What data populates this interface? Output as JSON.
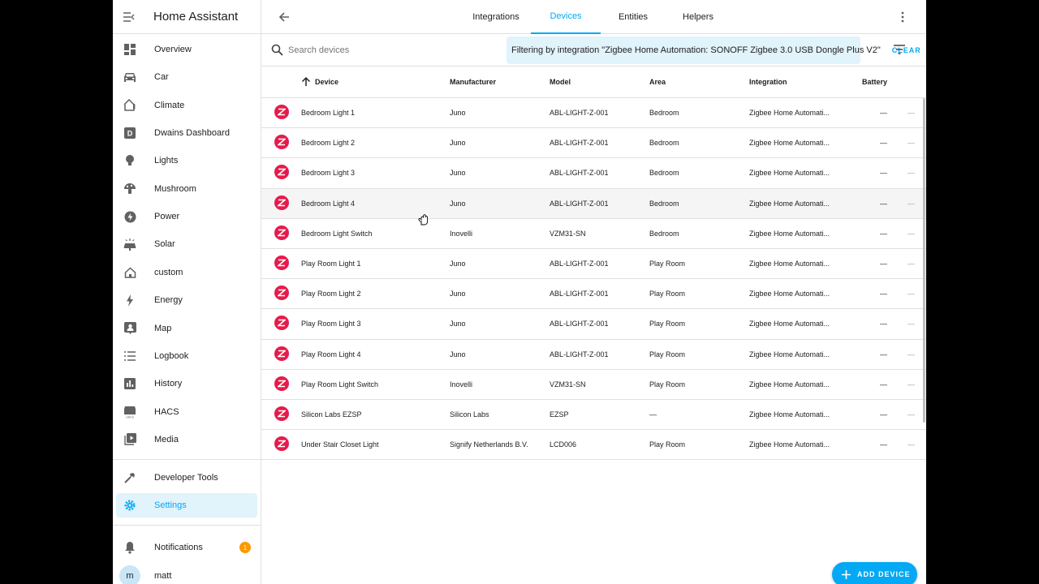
{
  "app": {
    "title": "Home Assistant"
  },
  "sidebar": {
    "items": [
      {
        "label": "Overview",
        "icon": "dashboard-icon"
      },
      {
        "label": "Car",
        "icon": "car-icon"
      },
      {
        "label": "Climate",
        "icon": "home-thermometer-icon"
      },
      {
        "label": "Dwains Dashboard",
        "icon": "dwains-icon"
      },
      {
        "label": "Lights",
        "icon": "lightbulb-icon"
      },
      {
        "label": "Mushroom",
        "icon": "mushroom-icon"
      },
      {
        "label": "Power",
        "icon": "lightning-circle-icon"
      },
      {
        "label": "Solar",
        "icon": "solar-panel-icon"
      },
      {
        "label": "custom",
        "icon": "home-outline-icon"
      },
      {
        "label": "Energy",
        "icon": "lightning-icon"
      },
      {
        "label": "Map",
        "icon": "map-account-icon"
      },
      {
        "label": "Logbook",
        "icon": "list-icon"
      },
      {
        "label": "History",
        "icon": "chart-box-icon"
      },
      {
        "label": "HACS",
        "icon": "hacs-icon"
      },
      {
        "label": "Media",
        "icon": "play-box-icon"
      }
    ],
    "developer_tools": "Developer Tools",
    "settings": "Settings",
    "notifications": "Notifications",
    "notifications_count": "1",
    "user": "matt",
    "user_initial": "m"
  },
  "tabs": [
    "Integrations",
    "Devices",
    "Entities",
    "Helpers"
  ],
  "active_tab": "Devices",
  "search": {
    "placeholder": "Search devices",
    "value": ""
  },
  "filter": {
    "text": "Filtering by integration \"Zigbee Home Automation: SONOFF Zigbee 3.0 USB Dongle Plus V2\"",
    "clear": "CLEAR"
  },
  "table": {
    "headers": {
      "device": "Device",
      "manufacturer": "Manufacturer",
      "model": "Model",
      "area": "Area",
      "integration": "Integration",
      "battery": "Battery"
    },
    "rows": [
      {
        "device": "Bedroom Light 1",
        "manufacturer": "Juno",
        "model": "ABL-LIGHT-Z-001",
        "area": "Bedroom",
        "integration": "Zigbee Home Automati...",
        "battery": "—",
        "extra": "—"
      },
      {
        "device": "Bedroom Light 2",
        "manufacturer": "Juno",
        "model": "ABL-LIGHT-Z-001",
        "area": "Bedroom",
        "integration": "Zigbee Home Automati...",
        "battery": "—",
        "extra": "—"
      },
      {
        "device": "Bedroom Light 3",
        "manufacturer": "Juno",
        "model": "ABL-LIGHT-Z-001",
        "area": "Bedroom",
        "integration": "Zigbee Home Automati...",
        "battery": "—",
        "extra": "—"
      },
      {
        "device": "Bedroom Light 4",
        "manufacturer": "Juno",
        "model": "ABL-LIGHT-Z-001",
        "area": "Bedroom",
        "integration": "Zigbee Home Automati...",
        "battery": "—",
        "extra": "—"
      },
      {
        "device": "Bedroom Light Switch",
        "manufacturer": "Inovelli",
        "model": "VZM31-SN",
        "area": "Bedroom",
        "integration": "Zigbee Home Automati...",
        "battery": "—",
        "extra": "—"
      },
      {
        "device": "Play Room Light 1",
        "manufacturer": "Juno",
        "model": "ABL-LIGHT-Z-001",
        "area": "Play Room",
        "integration": "Zigbee Home Automati...",
        "battery": "—",
        "extra": "—"
      },
      {
        "device": "Play Room Light 2",
        "manufacturer": "Juno",
        "model": "ABL-LIGHT-Z-001",
        "area": "Play Room",
        "integration": "Zigbee Home Automati...",
        "battery": "—",
        "extra": "—"
      },
      {
        "device": "Play Room Light 3",
        "manufacturer": "Juno",
        "model": "ABL-LIGHT-Z-001",
        "area": "Play Room",
        "integration": "Zigbee Home Automati...",
        "battery": "—",
        "extra": "—"
      },
      {
        "device": "Play Room Light 4",
        "manufacturer": "Juno",
        "model": "ABL-LIGHT-Z-001",
        "area": "Play Room",
        "integration": "Zigbee Home Automati...",
        "battery": "—",
        "extra": "—"
      },
      {
        "device": "Play Room Light Switch",
        "manufacturer": "Inovelli",
        "model": "VZM31-SN",
        "area": "Play Room",
        "integration": "Zigbee Home Automati...",
        "battery": "—",
        "extra": "—"
      },
      {
        "device": "Silicon Labs EZSP",
        "manufacturer": "Silicon Labs",
        "model": "EZSP",
        "area": "—",
        "integration": "Zigbee Home Automati...",
        "battery": "—",
        "extra": "—"
      },
      {
        "device": "Under Stair Closet Light",
        "manufacturer": "Signify Netherlands B.V.",
        "model": "LCD006",
        "area": "Play Room",
        "integration": "Zigbee Home Automati...",
        "battery": "—",
        "extra": "—"
      }
    ]
  },
  "fab": {
    "label": "ADD DEVICE"
  },
  "colors": {
    "accent": "#03a9f4",
    "zha_logo": "#e51c4b",
    "badge": "#ff9800"
  }
}
